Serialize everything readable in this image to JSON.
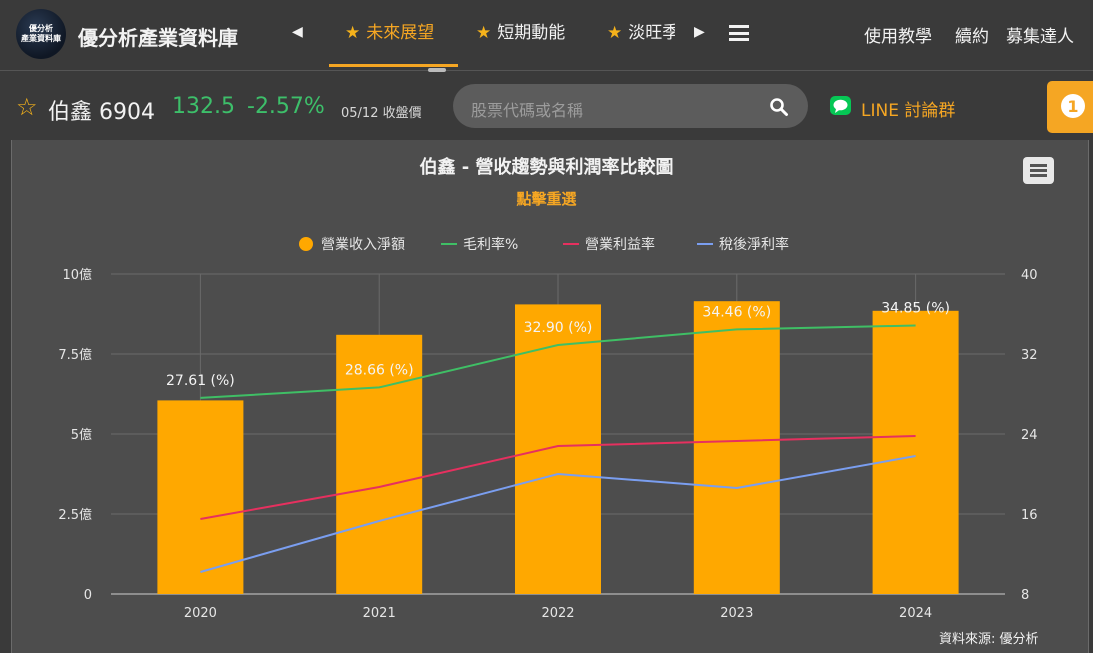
{
  "header": {
    "logo_text": [
      "優分析",
      "產業資料庫"
    ],
    "brand": "優分析產業資料庫",
    "tabs": [
      {
        "label": "未來展望",
        "active": true
      },
      {
        "label": "短期動能",
        "active": false
      },
      {
        "label": "淡旺季",
        "active": false
      }
    ],
    "links": [
      "使用教學",
      "續約",
      "募集達人"
    ]
  },
  "stock": {
    "name": "伯鑫 6904",
    "price": "132.5",
    "change": "-2.57%",
    "date": "05/12 收盤價"
  },
  "search": {
    "placeholder": "股票代碼或名稱"
  },
  "line_group": {
    "label": "LINE 討論群"
  },
  "badge": {
    "count": "1"
  },
  "colors": {
    "accent": "#f5a623",
    "up_down_green": "#3dbf6a",
    "bar": "#ffa800",
    "gross": "#3fbf65",
    "operating": "#e6305f",
    "net": "#7a9ef0"
  },
  "chart_data": {
    "type": "bar",
    "title": "伯鑫 - 營收趨勢與利潤率比較圖",
    "subtitle": "點擊重選",
    "categories": [
      "2020",
      "2021",
      "2022",
      "2023",
      "2024"
    ],
    "legend_position": "top",
    "grid": true,
    "y_left": {
      "ylim": [
        0,
        10
      ],
      "ticks": [
        "0",
        "2.5億",
        "5億",
        "7.5億",
        "10億"
      ]
    },
    "y_right": {
      "ylim": [
        8,
        40
      ],
      "ticks": [
        "8",
        "16",
        "24",
        "32",
        "40"
      ]
    },
    "series": [
      {
        "name": "營業收入淨額",
        "type": "bar",
        "axis": "left",
        "values": [
          6.05,
          8.1,
          9.05,
          9.15,
          8.85
        ]
      },
      {
        "name": "毛利率%",
        "type": "line",
        "axis": "right",
        "values": [
          27.61,
          28.66,
          32.9,
          34.46,
          34.85
        ],
        "data_labels": [
          "27.61 (%)",
          "28.66 (%)",
          "32.90 (%)",
          "34.46 (%)",
          "34.85 (%)"
        ]
      },
      {
        "name": "營業利益率",
        "type": "line",
        "axis": "right",
        "values": [
          15.5,
          18.7,
          22.8,
          23.3,
          23.8
        ]
      },
      {
        "name": "稅後淨利率",
        "type": "line",
        "axis": "right",
        "values": [
          10.2,
          15.3,
          20.0,
          18.6,
          21.8
        ]
      }
    ],
    "credit": "資料來源: 優分析"
  }
}
